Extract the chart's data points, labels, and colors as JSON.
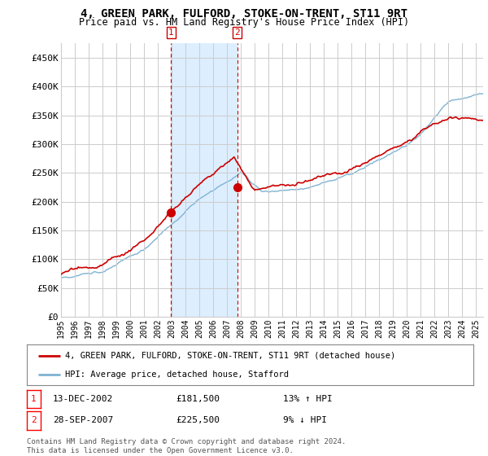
{
  "title": "4, GREEN PARK, FULFORD, STOKE-ON-TRENT, ST11 9RT",
  "subtitle": "Price paid vs. HM Land Registry's House Price Index (HPI)",
  "ylabel_ticks": [
    "£0",
    "£50K",
    "£100K",
    "£150K",
    "£200K",
    "£250K",
    "£300K",
    "£350K",
    "£400K",
    "£450K"
  ],
  "ytick_vals": [
    0,
    50000,
    100000,
    150000,
    200000,
    250000,
    300000,
    350000,
    400000,
    450000
  ],
  "ylim": [
    0,
    475000
  ],
  "xlim_start": 1995.0,
  "xlim_end": 2025.5,
  "transaction1_x": 2002.95,
  "transaction1_y": 181500,
  "transaction2_x": 2007.74,
  "transaction2_y": 225500,
  "vline1_x": 2002.95,
  "vline2_x": 2007.74,
  "shade_start": 2002.95,
  "shade_end": 2007.74,
  "legend_line1": "4, GREEN PARK, FULFORD, STOKE-ON-TRENT, ST11 9RT (detached house)",
  "legend_line2": "HPI: Average price, detached house, Stafford",
  "table_row1": [
    "1",
    "13-DEC-2002",
    "£181,500",
    "13% ↑ HPI"
  ],
  "table_row2": [
    "2",
    "28-SEP-2007",
    "£225,500",
    "9% ↓ HPI"
  ],
  "footer": "Contains HM Land Registry data © Crown copyright and database right 2024.\nThis data is licensed under the Open Government Licence v3.0.",
  "hpi_color": "#7fb3d3",
  "price_color": "#cc0000",
  "shade_color": "#ddeeff",
  "vline_color": "#cc0000",
  "grid_color": "#cccccc",
  "bg_color": "#ffffff"
}
